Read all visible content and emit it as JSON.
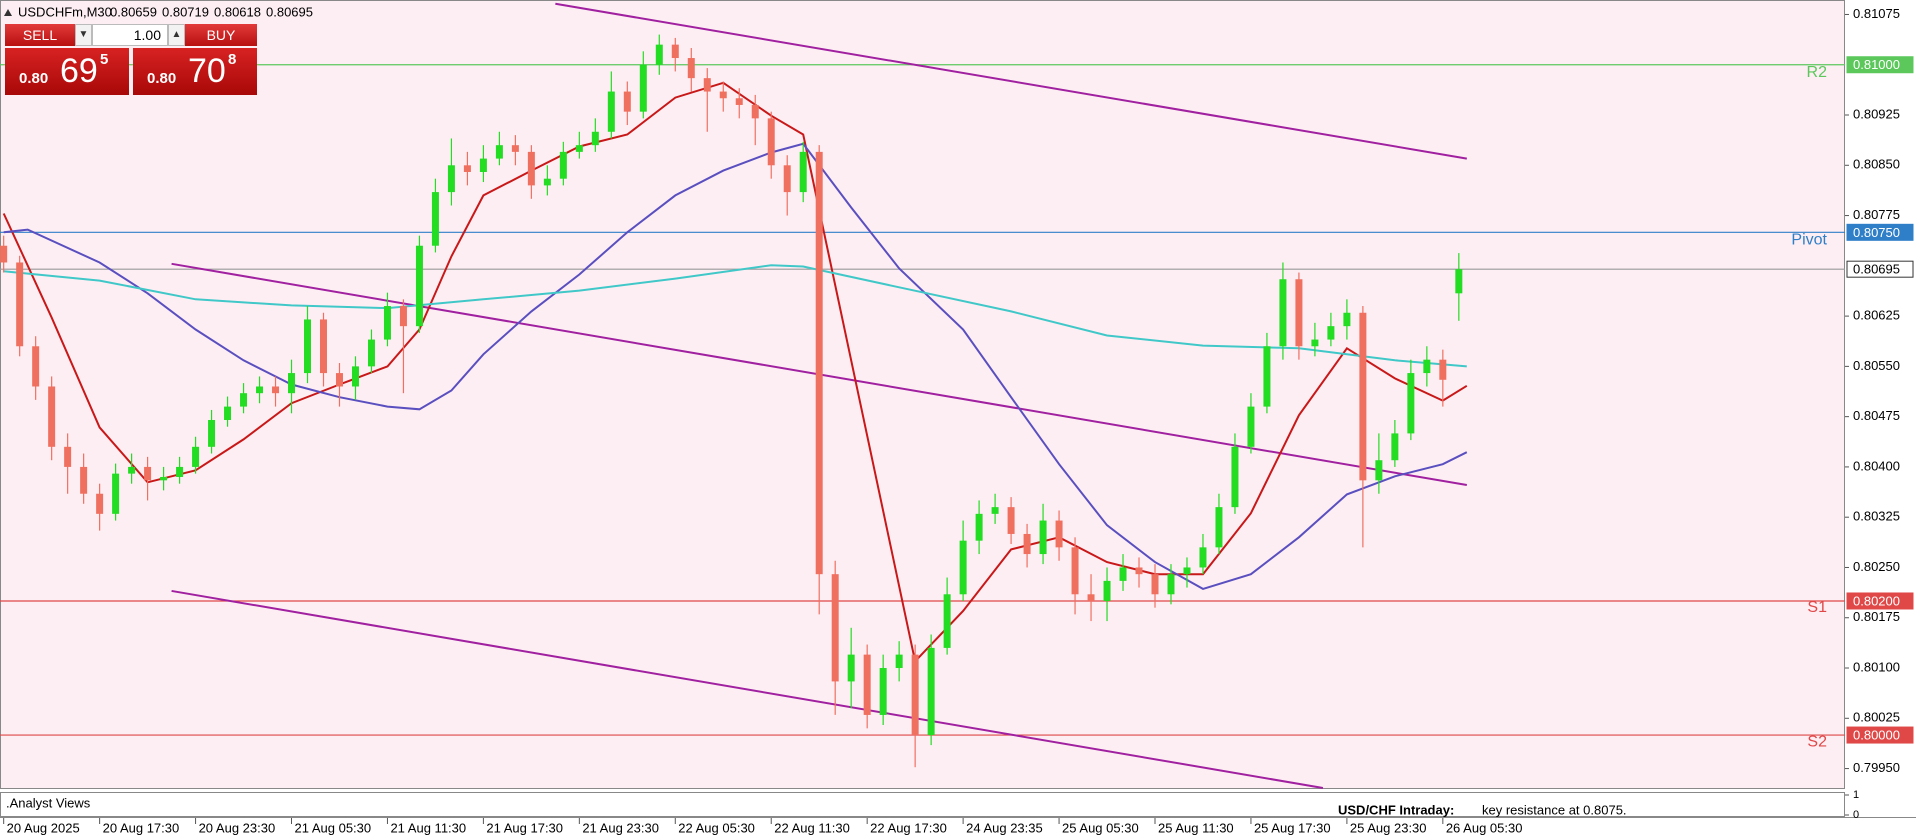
{
  "header": {
    "symbol": "USDCHFm,M30",
    "ohlc": [
      "0.80659",
      "0.80719",
      "0.80618",
      "0.80695"
    ]
  },
  "trade_panel": {
    "sell": "SELL",
    "lot": "1.00",
    "buy": "BUY",
    "sell_price": {
      "prefix": "0.80",
      "big": "69",
      "small": "5"
    },
    "buy_price": {
      "prefix": "0.80",
      "big": "70",
      "small": "8"
    }
  },
  "chart_data": {
    "type": "candlestick",
    "colors": {
      "up": "#22dd22",
      "down": "#f0705f",
      "background": "#fdeef4"
    },
    "xlim": [
      -0.46,
      230.3
    ],
    "xticks": [
      {
        "value": 0,
        "label": "20 Aug 2025"
      },
      {
        "value": 12,
        "label": "20 Aug 17:30"
      },
      {
        "value": 24,
        "label": "20 Aug 23:30"
      },
      {
        "value": 36,
        "label": "21 Aug 05:30"
      },
      {
        "value": 48,
        "label": "21 Aug 11:30"
      },
      {
        "value": 60,
        "label": "21 Aug 17:30"
      },
      {
        "value": 72,
        "label": "21 Aug 23:30"
      },
      {
        "value": 84,
        "label": "22 Aug 05:30"
      },
      {
        "value": 96,
        "label": "22 Aug 11:30"
      },
      {
        "value": 108,
        "label": "22 Aug 17:30"
      },
      {
        "value": 120,
        "label": "24 Aug 23:35"
      },
      {
        "value": 132,
        "label": "25 Aug 05:30"
      },
      {
        "value": 144,
        "label": "25 Aug 11:30"
      },
      {
        "value": 156,
        "label": "25 Aug 17:30"
      },
      {
        "value": 168,
        "label": "25 Aug 23:30"
      },
      {
        "value": 180,
        "label": "26 Aug 05:30"
      }
    ],
    "ylim": [
      0.79921,
      0.81093
    ],
    "yticks": [
      0.81075,
      {
        "value": 0.80925,
        "label": "0.80925"
      },
      {
        "value": 0.8085,
        "label": "0.80850"
      },
      0.80775,
      0.80625,
      {
        "value": 0.8055,
        "label": "0.80550"
      },
      0.80475,
      {
        "value": 0.804,
        "label": "0.80400"
      },
      0.80325,
      {
        "value": 0.8025,
        "label": "0.80250"
      },
      0.80175,
      {
        "value": 0.801,
        "label": "0.80100"
      },
      0.80025,
      {
        "value": 0.7995,
        "label": "0.79950"
      }
    ],
    "candles": [
      [
        0,
        0.8073,
        0.80745,
        0.8069,
        0.80705
      ],
      [
        2,
        0.80705,
        0.80715,
        0.80565,
        0.8058
      ],
      [
        4,
        0.8058,
        0.80595,
        0.805,
        0.8052
      ],
      [
        6,
        0.8052,
        0.80535,
        0.8041,
        0.8043
      ],
      [
        8,
        0.8043,
        0.8045,
        0.8036,
        0.804
      ],
      [
        10,
        0.804,
        0.8042,
        0.80345,
        0.8036
      ],
      [
        12,
        0.8036,
        0.80375,
        0.80305,
        0.8033
      ],
      [
        14,
        0.8033,
        0.80405,
        0.8032,
        0.8039
      ],
      [
        16,
        0.8039,
        0.8042,
        0.80375,
        0.804
      ],
      [
        18,
        0.804,
        0.80415,
        0.8035,
        0.8038
      ],
      [
        20,
        0.8038,
        0.804,
        0.80365,
        0.80385
      ],
      [
        22,
        0.80385,
        0.80415,
        0.80375,
        0.804
      ],
      [
        24,
        0.804,
        0.80445,
        0.8039,
        0.8043
      ],
      [
        26,
        0.8043,
        0.80485,
        0.8042,
        0.8047
      ],
      [
        28,
        0.8047,
        0.80505,
        0.8046,
        0.8049
      ],
      [
        30,
        0.8049,
        0.80525,
        0.8048,
        0.8051
      ],
      [
        32,
        0.8051,
        0.80535,
        0.80495,
        0.8052
      ],
      [
        34,
        0.8052,
        0.80535,
        0.8049,
        0.8051
      ],
      [
        36,
        0.8051,
        0.8056,
        0.8048,
        0.8054
      ],
      [
        38,
        0.8054,
        0.8064,
        0.80525,
        0.8062
      ],
      [
        40,
        0.8062,
        0.8063,
        0.8052,
        0.8054
      ],
      [
        42,
        0.8054,
        0.80555,
        0.8049,
        0.8052
      ],
      [
        44,
        0.8052,
        0.80565,
        0.805,
        0.8055
      ],
      [
        46,
        0.8055,
        0.80605,
        0.8054,
        0.8059
      ],
      [
        48,
        0.8059,
        0.8066,
        0.8058,
        0.8064
      ],
      [
        50,
        0.8064,
        0.8065,
        0.8051,
        0.8061
      ],
      [
        52,
        0.8061,
        0.80745,
        0.806,
        0.8073
      ],
      [
        54,
        0.8073,
        0.8083,
        0.8072,
        0.8081
      ],
      [
        56,
        0.8081,
        0.8089,
        0.8079,
        0.8085
      ],
      [
        58,
        0.8085,
        0.8087,
        0.8082,
        0.8084
      ],
      [
        60,
        0.8084,
        0.8088,
        0.80825,
        0.8086
      ],
      [
        62,
        0.8086,
        0.809,
        0.8085,
        0.8088
      ],
      [
        64,
        0.8088,
        0.80895,
        0.8085,
        0.8087
      ],
      [
        66,
        0.8087,
        0.8088,
        0.808,
        0.8082
      ],
      [
        68,
        0.8082,
        0.8085,
        0.80805,
        0.8083
      ],
      [
        70,
        0.8083,
        0.80885,
        0.8082,
        0.8087
      ],
      [
        72,
        0.8087,
        0.809,
        0.8086,
        0.8088
      ],
      [
        74,
        0.8088,
        0.8092,
        0.8087,
        0.809
      ],
      [
        76,
        0.809,
        0.8099,
        0.8089,
        0.8096
      ],
      [
        78,
        0.8096,
        0.80975,
        0.8091,
        0.8093
      ],
      [
        80,
        0.8093,
        0.8102,
        0.8092,
        0.81
      ],
      [
        82,
        0.81,
        0.81045,
        0.80985,
        0.8103
      ],
      [
        84,
        0.8103,
        0.8104,
        0.8099,
        0.8101
      ],
      [
        86,
        0.8101,
        0.81025,
        0.8096,
        0.8098
      ],
      [
        88,
        0.8098,
        0.80995,
        0.809,
        0.8096
      ],
      [
        90,
        0.8096,
        0.80975,
        0.8093,
        0.8095
      ],
      [
        92,
        0.8095,
        0.80965,
        0.8092,
        0.8094
      ],
      [
        94,
        0.8094,
        0.80955,
        0.8088,
        0.8092
      ],
      [
        96,
        0.8092,
        0.8093,
        0.8083,
        0.8085
      ],
      [
        98,
        0.8085,
        0.80865,
        0.80775,
        0.8081
      ],
      [
        100,
        0.8081,
        0.80885,
        0.80795,
        0.8087
      ],
      [
        102,
        0.8087,
        0.8088,
        0.8018,
        0.8024
      ],
      [
        104,
        0.8024,
        0.8026,
        0.8003,
        0.8008
      ],
      [
        106,
        0.8008,
        0.8016,
        0.8004,
        0.8012
      ],
      [
        108,
        0.8012,
        0.80135,
        0.8001,
        0.8003
      ],
      [
        110,
        0.8003,
        0.8012,
        0.80015,
        0.801
      ],
      [
        112,
        0.801,
        0.8014,
        0.8008,
        0.8012
      ],
      [
        114,
        0.8012,
        0.80135,
        0.79952,
        0.8
      ],
      [
        116,
        0.8,
        0.8015,
        0.79985,
        0.8013
      ],
      [
        118,
        0.8013,
        0.80235,
        0.8012,
        0.8021
      ],
      [
        120,
        0.8021,
        0.8032,
        0.802,
        0.8029
      ],
      [
        122,
        0.8029,
        0.8035,
        0.8027,
        0.8033
      ],
      [
        124,
        0.8033,
        0.8036,
        0.80315,
        0.8034
      ],
      [
        126,
        0.8034,
        0.80355,
        0.80285,
        0.803
      ],
      [
        128,
        0.803,
        0.80315,
        0.8025,
        0.8027
      ],
      [
        130,
        0.8027,
        0.80345,
        0.80255,
        0.8032
      ],
      [
        132,
        0.8032,
        0.80335,
        0.8026,
        0.8028
      ],
      [
        134,
        0.8028,
        0.80295,
        0.8018,
        0.8021
      ],
      [
        136,
        0.8021,
        0.8024,
        0.8017,
        0.802
      ],
      [
        138,
        0.802,
        0.8025,
        0.8017,
        0.8023
      ],
      [
        140,
        0.8023,
        0.8027,
        0.80215,
        0.8025
      ],
      [
        142,
        0.8025,
        0.80265,
        0.8022,
        0.8024
      ],
      [
        144,
        0.8024,
        0.80255,
        0.8019,
        0.8021
      ],
      [
        146,
        0.8021,
        0.80255,
        0.80195,
        0.8024
      ],
      [
        148,
        0.8024,
        0.80265,
        0.8022,
        0.8025
      ],
      [
        150,
        0.8025,
        0.803,
        0.8024,
        0.8028
      ],
      [
        152,
        0.8028,
        0.8036,
        0.8027,
        0.8034
      ],
      [
        154,
        0.8034,
        0.8045,
        0.8033,
        0.8043
      ],
      [
        156,
        0.8043,
        0.8051,
        0.8042,
        0.8049
      ],
      [
        158,
        0.8049,
        0.806,
        0.8048,
        0.8058
      ],
      [
        160,
        0.8058,
        0.80705,
        0.8056,
        0.8068
      ],
      [
        162,
        0.8068,
        0.8069,
        0.8056,
        0.8058
      ],
      [
        164,
        0.8058,
        0.80615,
        0.80565,
        0.8059
      ],
      [
        166,
        0.8059,
        0.8063,
        0.8058,
        0.8061
      ],
      [
        168,
        0.8061,
        0.8065,
        0.8059,
        0.8063
      ],
      [
        170,
        0.8063,
        0.8064,
        0.8028,
        0.8038
      ],
      [
        172,
        0.8038,
        0.8045,
        0.8036,
        0.8041
      ],
      [
        174,
        0.8041,
        0.8047,
        0.804,
        0.8045
      ],
      [
        176,
        0.8045,
        0.8056,
        0.8044,
        0.8054
      ],
      [
        178,
        0.8054,
        0.8058,
        0.8052,
        0.8056
      ],
      [
        180,
        0.8056,
        0.80575,
        0.8049,
        0.8053
      ],
      [
        182,
        0.80659,
        0.80719,
        0.80618,
        0.80695
      ]
    ],
    "series": [
      {
        "color": "#c81818",
        "x": [
          0,
          6,
          12,
          18,
          24,
          30,
          36,
          42,
          48,
          52,
          56,
          60,
          66,
          72,
          78,
          84,
          90,
          96,
          100,
          114,
          120,
          126,
          132,
          138,
          144,
          150,
          156,
          162,
          168,
          174,
          180,
          183
        ],
        "values": [
          0.80778,
          0.80623,
          0.80459,
          0.80377,
          0.80395,
          0.80441,
          0.80495,
          0.80523,
          0.8055,
          0.80605,
          0.80714,
          0.80805,
          0.80842,
          0.80878,
          0.80896,
          0.80951,
          0.80973,
          0.80924,
          0.80896,
          0.8011,
          0.80185,
          0.80277,
          0.80295,
          0.80258,
          0.8024,
          0.8024,
          0.80331,
          0.80477,
          0.80577,
          0.80532,
          0.80499,
          0.80521
        ]
      },
      {
        "color": "#5a4fbf",
        "x": [
          0,
          3,
          12,
          18,
          24,
          30,
          36,
          42,
          48,
          52,
          56,
          60,
          66,
          72,
          78,
          84,
          90,
          96,
          100,
          106,
          112,
          120,
          126,
          132,
          138,
          144,
          150,
          156,
          162,
          168,
          174,
          180,
          183
        ],
        "values": [
          0.8075,
          0.80754,
          0.80705,
          0.80659,
          0.80605,
          0.80559,
          0.80523,
          0.80504,
          0.8049,
          0.80486,
          0.80514,
          0.80568,
          0.80632,
          0.80687,
          0.8075,
          0.80805,
          0.80842,
          0.80869,
          0.80882,
          0.80787,
          0.80696,
          0.80605,
          0.80504,
          0.80404,
          0.80313,
          0.80258,
          0.80218,
          0.8024,
          0.80295,
          0.80359,
          0.80386,
          0.80404,
          0.80422
        ]
      },
      {
        "color": "#40c8c8",
        "x": [
          0,
          12,
          24,
          36,
          48,
          60,
          72,
          84,
          96,
          100,
          112,
          126,
          138,
          150,
          162,
          174,
          183
        ],
        "values": [
          0.80692,
          0.80678,
          0.8065,
          0.80641,
          0.80637,
          0.8065,
          0.80663,
          0.80681,
          0.80701,
          0.80699,
          0.80668,
          0.80632,
          0.80596,
          0.80581,
          0.80577,
          0.80559,
          0.8055
        ]
      }
    ],
    "trendlines": [
      {
        "color": "#a020a0",
        "x": [
          69,
          183
        ],
        "values": [
          0.81091,
          0.8086
        ]
      },
      {
        "color": "#a020a0",
        "x": [
          21,
          183
        ],
        "values": [
          0.80703,
          0.80373
        ]
      },
      {
        "color": "#a020a0",
        "x": [
          21,
          165
        ],
        "values": [
          0.80215,
          0.79921
        ]
      }
    ],
    "levels": [
      {
        "name": "R2",
        "value": 0.81,
        "label": "0.81000",
        "color": "#5cc85c"
      },
      {
        "name": "Pivot",
        "value": 0.8075,
        "label": "0.80750",
        "color": "#2f7fc8"
      },
      {
        "value": 0.80695,
        "label": "0.80695",
        "color": "#9a9a9a"
      },
      {
        "name": "S1",
        "value": 0.802,
        "label": "0.80200",
        "color": "#e04848"
      },
      {
        "name": "S2",
        "value": 0.8,
        "label": "0.80000",
        "color": "#e04848"
      }
    ],
    "subwindow": {
      "label": ".Analyst Views",
      "ylim": [
        0,
        1
      ],
      "yticks": [
        0,
        1
      ],
      "note_title": "USD/CHF Intraday:",
      "note_text": "key resistance at 0.8075."
    }
  }
}
